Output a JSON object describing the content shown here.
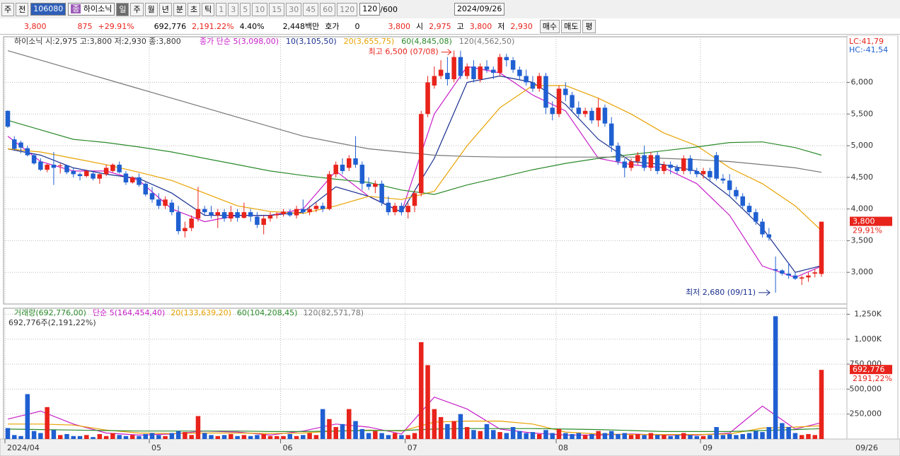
{
  "toolbar": {
    "row1": {
      "period_tab": "주",
      "all": "전",
      "code": "106080",
      "badge": "종",
      "name": "하이소닉",
      "periods": [
        "일",
        "주",
        "월",
        "년",
        "분",
        "초",
        "틱"
      ],
      "minutes": [
        "1",
        "3",
        "5",
        "10",
        "15",
        "30",
        "45",
        "60",
        "120"
      ],
      "count": "120",
      "total": "/600",
      "date": "2024/09/26"
    },
    "row2": {
      "price": "3,800",
      "change": "875",
      "rate": "+29.91%",
      "volume": "692,776",
      "volume_rate": "2,191.22%",
      "turnover": "4.40%",
      "amount": "2,448백만",
      "quote_label": "호가",
      "quote": "0",
      "ask": "3,800",
      "open_label": "시",
      "open": "2,975",
      "high_label": "고",
      "high": "3,800",
      "low_label": "저",
      "low": "2,930",
      "buy": "매수",
      "sell": "매도",
      "avg": "평"
    }
  },
  "chart_data": {
    "type": "candlestick",
    "title": "하이소닉 시:2,975 고:3,800 저:2,930 종:3,800",
    "colors": {
      "up": "#e8231b",
      "down": "#1f5fd1"
    },
    "ylim": [
      2500,
      6720
    ],
    "yticks": [
      {
        "value": 3000,
        "label": "3,000"
      },
      {
        "value": 3500,
        "label": "3,500"
      },
      {
        "value": 4000,
        "label": "4,000"
      },
      {
        "value": 4500,
        "label": "4,500"
      },
      {
        "value": 5000,
        "label": "5,000"
      },
      {
        "value": 5500,
        "label": "5,500"
      },
      {
        "value": 6000,
        "label": "6,000"
      }
    ],
    "volume_ylim": [
      0,
      1310000
    ],
    "volume_yticks": [
      {
        "value": 250000,
        "label": "250,000"
      },
      {
        "value": 500000,
        "label": "500,000"
      },
      {
        "value": 750000,
        "label": "750,000"
      },
      {
        "value": 1000000,
        "label": "1,000K"
      },
      {
        "value": 1250000,
        "label": "1,250K"
      }
    ],
    "high_annotation": "최고 6,500 (07/08)",
    "low_annotation": "최저 2,680 (09/11)",
    "lc": "LC:41,79",
    "hc": "HC:-41,54",
    "last_price_label": "3,800",
    "last_rate_label": "29,91%",
    "volume_title": "거래량(692,776,00)",
    "volume_subtitle": "692,776주(2,191,22%)",
    "last_volume_label": "692,776",
    "last_volume_rate_label": "2191,22%",
    "grid": true,
    "dates": [
      "2024/04",
      null,
      null,
      null,
      null,
      null,
      null,
      null,
      null,
      null,
      null,
      null,
      null,
      null,
      null,
      null,
      null,
      null,
      null,
      null,
      null,
      null,
      "05",
      null,
      null,
      null,
      null,
      null,
      null,
      null,
      null,
      null,
      null,
      null,
      null,
      null,
      null,
      null,
      null,
      null,
      null,
      null,
      "06",
      null,
      null,
      null,
      null,
      null,
      null,
      null,
      null,
      null,
      null,
      null,
      null,
      null,
      null,
      null,
      null,
      null,
      null,
      "07",
      null,
      null,
      null,
      null,
      null,
      null,
      null,
      null,
      null,
      null,
      null,
      null,
      null,
      null,
      null,
      null,
      null,
      null,
      null,
      null,
      null,
      null,
      "08",
      null,
      null,
      null,
      null,
      null,
      null,
      null,
      null,
      null,
      null,
      null,
      null,
      null,
      null,
      null,
      null,
      null,
      null,
      null,
      null,
      null,
      "09",
      null,
      null,
      null,
      null,
      null,
      null,
      null,
      null,
      null,
      null,
      null,
      null,
      null,
      null,
      null,
      null,
      null,
      "09/26"
    ],
    "candles": [
      [
        5550,
        5560,
        5280,
        5300,
        110000
      ],
      [
        5100,
        5150,
        4930,
        4950,
        40000
      ],
      [
        5050,
        5080,
        4880,
        4970,
        30000
      ],
      [
        4960,
        5000,
        4830,
        4850,
        450000
      ],
      [
        4850,
        4880,
        4700,
        4720,
        80000
      ],
      [
        4750,
        4800,
        4600,
        4620,
        60000
      ],
      [
        4620,
        4720,
        4580,
        4700,
        320000
      ],
      [
        4700,
        4900,
        4380,
        4650,
        90000
      ],
      [
        4680,
        4720,
        4560,
        4690,
        40000
      ],
      [
        4690,
        4700,
        4550,
        4580,
        50000
      ],
      [
        4600,
        4650,
        4500,
        4550,
        30000
      ],
      [
        4550,
        4580,
        4450,
        4520,
        30000
      ],
      [
        4520,
        4620,
        4500,
        4600,
        40000
      ],
      [
        4560,
        4600,
        4450,
        4480,
        20000
      ],
      [
        4480,
        4560,
        4400,
        4550,
        50000
      ],
      [
        4550,
        4700,
        4520,
        4650,
        30000
      ],
      [
        4600,
        4720,
        4580,
        4700,
        60000
      ],
      [
        4700,
        4750,
        4560,
        4580,
        40000
      ],
      [
        4560,
        4600,
        4380,
        4420,
        30000
      ],
      [
        4420,
        4520,
        4400,
        4500,
        40000
      ],
      [
        4500,
        4560,
        4350,
        4380,
        30000
      ],
      [
        4400,
        4420,
        4200,
        4230,
        50000
      ],
      [
        4250,
        4350,
        4100,
        4150,
        60000
      ],
      [
        4150,
        4250,
        4000,
        4050,
        40000
      ],
      [
        4050,
        4200,
        4000,
        4150,
        30000
      ],
      [
        4100,
        4150,
        3900,
        3950,
        60000
      ],
      [
        3950,
        4050,
        3600,
        3650,
        80000
      ],
      [
        3650,
        3800,
        3550,
        3700,
        70000
      ],
      [
        3700,
        3900,
        3650,
        3850,
        40000
      ],
      [
        3850,
        4350,
        3800,
        4000,
        230000
      ],
      [
        4000,
        4050,
        3900,
        3950,
        60000
      ],
      [
        3950,
        4050,
        3850,
        3900,
        40000
      ],
      [
        3900,
        4000,
        3700,
        3950,
        30000
      ],
      [
        3950,
        4000,
        3800,
        3850,
        40000
      ],
      [
        3850,
        4050,
        3800,
        3950,
        50000
      ],
      [
        3950,
        4000,
        3800,
        3860,
        30000
      ],
      [
        3860,
        4100,
        3850,
        3950,
        40000
      ],
      [
        3950,
        4000,
        3800,
        3880,
        30000
      ],
      [
        3880,
        3950,
        3700,
        3750,
        40000
      ],
      [
        3750,
        3900,
        3600,
        3850,
        50000
      ],
      [
        3850,
        3950,
        3800,
        3900,
        30000
      ],
      [
        3900,
        3950,
        3850,
        3920,
        30000
      ],
      [
        3920,
        4000,
        3880,
        3960,
        30000
      ],
      [
        3950,
        4000,
        3880,
        3900,
        50000
      ],
      [
        3900,
        4050,
        3850,
        4000,
        30000
      ],
      [
        4000,
        4150,
        3920,
        3950,
        40000
      ],
      [
        3950,
        4050,
        3900,
        4000,
        60000
      ],
      [
        4000,
        4100,
        3950,
        4050,
        40000
      ],
      [
        4050,
        4100,
        3950,
        4000,
        300000
      ],
      [
        4000,
        4600,
        3980,
        4550,
        200000
      ],
      [
        4550,
        4750,
        4500,
        4700,
        120000
      ],
      [
        4700,
        4800,
        4550,
        4600,
        150000
      ],
      [
        4650,
        4850,
        4600,
        4800,
        300000
      ],
      [
        4800,
        5150,
        4650,
        4700,
        180000
      ],
      [
        4700,
        4750,
        4300,
        4400,
        100000
      ],
      [
        4400,
        4500,
        4300,
        4350,
        60000
      ],
      [
        4350,
        4450,
        4250,
        4400,
        80000
      ],
      [
        4400,
        4450,
        4050,
        4100,
        60000
      ],
      [
        4100,
        4200,
        3900,
        3950,
        40000
      ],
      [
        3950,
        4100,
        3900,
        4050,
        60000
      ],
      [
        4050,
        4100,
        3900,
        3950,
        40000
      ],
      [
        3950,
        4100,
        3850,
        4050,
        40000
      ],
      [
        4050,
        4300,
        3950,
        4250,
        60000
      ],
      [
        4250,
        5550,
        4200,
        5500,
        970000
      ],
      [
        5500,
        6100,
        5450,
        6000,
        740000
      ],
      [
        5950,
        6250,
        5900,
        6100,
        300000
      ],
      [
        6100,
        6350,
        6050,
        6200,
        220000
      ],
      [
        6150,
        6400,
        5950,
        6050,
        150000
      ],
      [
        6050,
        6500,
        6000,
        6400,
        180000
      ],
      [
        6400,
        6500,
        6050,
        6100,
        250000
      ],
      [
        6100,
        6300,
        6050,
        6250,
        120000
      ],
      [
        6250,
        6350,
        6000,
        6050,
        90000
      ],
      [
        6050,
        6300,
        6000,
        6250,
        80000
      ],
      [
        6250,
        6350,
        6150,
        6200,
        150000
      ],
      [
        6200,
        6250,
        6050,
        6150,
        90000
      ],
      [
        6150,
        6450,
        6100,
        6400,
        70000
      ],
      [
        6400,
        6450,
        6250,
        6350,
        60000
      ],
      [
        6350,
        6400,
        6150,
        6200,
        120000
      ],
      [
        6200,
        6250,
        6050,
        6100,
        80000
      ],
      [
        6100,
        6200,
        5950,
        6000,
        60000
      ],
      [
        6000,
        6100,
        5850,
        5900,
        70000
      ],
      [
        5900,
        6150,
        5850,
        6100,
        50000
      ],
      [
        6100,
        6150,
        5500,
        5600,
        90000
      ],
      [
        5600,
        5700,
        5400,
        5500,
        60000
      ],
      [
        5500,
        5950,
        5450,
        5900,
        100000
      ],
      [
        5900,
        6000,
        5700,
        5800,
        60000
      ],
      [
        5800,
        5850,
        5550,
        5600,
        50000
      ],
      [
        5600,
        5700,
        5450,
        5500,
        60000
      ],
      [
        5500,
        5600,
        5450,
        5550,
        40000
      ],
      [
        5550,
        5600,
        5350,
        5400,
        50000
      ],
      [
        5400,
        5750,
        5300,
        5600,
        80000
      ],
      [
        5600,
        5650,
        5300,
        5350,
        60000
      ],
      [
        5350,
        5450,
        4900,
        5000,
        80000
      ],
      [
        5000,
        5050,
        4700,
        4750,
        50000
      ],
      [
        4750,
        4800,
        4500,
        4650,
        60000
      ],
      [
        4650,
        4800,
        4600,
        4750,
        40000
      ],
      [
        4750,
        4900,
        4700,
        4850,
        50000
      ],
      [
        4850,
        5000,
        4600,
        4650,
        40000
      ],
      [
        4650,
        4900,
        4600,
        4850,
        60000
      ],
      [
        4850,
        4900,
        4550,
        4600,
        40000
      ],
      [
        4600,
        4750,
        4550,
        4700,
        40000
      ],
      [
        4700,
        4750,
        4550,
        4650,
        30000
      ],
      [
        4650,
        4700,
        4550,
        4600,
        40000
      ],
      [
        4600,
        4850,
        4550,
        4800,
        60000
      ],
      [
        4800,
        4850,
        4550,
        4600,
        40000
      ],
      [
        4600,
        4650,
        4500,
        4550,
        30000
      ],
      [
        4550,
        4650,
        4480,
        4600,
        30000
      ],
      [
        4600,
        4650,
        4450,
        4500,
        40000
      ],
      [
        4850,
        4900,
        4450,
        4480,
        120000
      ],
      [
        4480,
        4550,
        4400,
        4450,
        40000
      ],
      [
        4450,
        4550,
        4200,
        4300,
        50000
      ],
      [
        4300,
        4350,
        4150,
        4200,
        40000
      ],
      [
        4200,
        4250,
        4000,
        4050,
        50000
      ],
      [
        4050,
        4100,
        3900,
        3950,
        60000
      ],
      [
        3950,
        4000,
        3750,
        3800,
        80000
      ],
      [
        3800,
        3850,
        3550,
        3600,
        70000
      ],
      [
        3600,
        3700,
        3500,
        3550,
        120000
      ],
      [
        3050,
        3250,
        2680,
        3030,
        1230000
      ],
      [
        3030,
        3050,
        2950,
        2980,
        160000
      ],
      [
        2980,
        3150,
        2900,
        2950,
        120000
      ],
      [
        2950,
        3000,
        2880,
        2900,
        60000
      ],
      [
        2900,
        2950,
        2800,
        2920,
        40000
      ],
      [
        2920,
        3000,
        2850,
        2950,
        50000
      ],
      [
        2980,
        3050,
        2920,
        3000,
        40000
      ],
      [
        2975,
        3800,
        2930,
        3800,
        692776
      ]
    ],
    "ma_x": [
      0,
      5,
      10,
      15,
      20,
      25,
      30,
      35,
      40,
      45,
      50,
      55,
      60,
      65,
      70,
      75,
      80,
      85,
      90,
      95,
      100,
      105,
      110,
      115,
      120,
      124
    ],
    "ma_lines": [
      {
        "name": "종가 단순 5(3,098,00)",
        "color": "#c81fc8",
        "values": [
          5150,
          4750,
          4600,
          4600,
          4450,
          4000,
          3800,
          3900,
          3900,
          4000,
          4600,
          4200,
          3950,
          5500,
          6250,
          6150,
          5800,
          5550,
          4800,
          4700,
          4650,
          4400,
          3900,
          3100,
          2920,
          3098
        ]
      },
      {
        "name": "10(3,105,50)",
        "color": "#1a2f8f",
        "values": [
          4950,
          4850,
          4650,
          4550,
          4480,
          4250,
          3900,
          3900,
          3900,
          3950,
          4350,
          4200,
          3950,
          4800,
          6000,
          6100,
          6000,
          5650,
          5100,
          4750,
          4700,
          4600,
          4200,
          3700,
          3000,
          3105
        ]
      },
      {
        "name": "20(3,655,75)",
        "color": "#e8a200",
        "values": [
          4950,
          4900,
          4800,
          4700,
          4580,
          4450,
          4250,
          4050,
          3960,
          3930,
          4050,
          4200,
          4150,
          4280,
          5000,
          5600,
          5950,
          5950,
          5750,
          5500,
          5200,
          5000,
          4650,
          4400,
          4050,
          3660
        ]
      },
      {
        "name": "60(4,845,08)",
        "color": "#2a8a2a",
        "values": [
          5400,
          5250,
          5100,
          5050,
          4980,
          4900,
          4800,
          4700,
          4600,
          4530,
          4470,
          4420,
          4300,
          4230,
          4380,
          4500,
          4620,
          4720,
          4800,
          4860,
          4920,
          4980,
          5050,
          5060,
          4970,
          4850
        ]
      },
      {
        "name": "120(4,562,50)",
        "color": "#777777",
        "values": [
          6500,
          6350,
          6200,
          6050,
          5900,
          5750,
          5600,
          5450,
          5300,
          5150,
          5050,
          4950,
          4900,
          4850,
          4830,
          4820,
          4820,
          4820,
          4820,
          4820,
          4800,
          4780,
          4750,
          4700,
          4650,
          4580
        ]
      }
    ],
    "volume_ma_lines": [
      {
        "name": "단순 5(164,454,40)",
        "color": "#c81fc8",
        "values": [
          200000,
          280000,
          150000,
          60000,
          40000,
          50000,
          80000,
          70000,
          40000,
          80000,
          150000,
          120000,
          50000,
          420000,
          300000,
          100000,
          60000,
          40000,
          40000,
          50000,
          40000,
          40000,
          60000,
          330000,
          100000,
          164454
        ]
      },
      {
        "name": "20(133,639,20)",
        "color": "#e8a200",
        "values": [
          150000,
          150000,
          140000,
          90000,
          60000,
          55000,
          60000,
          60000,
          55000,
          60000,
          80000,
          90000,
          80000,
          170000,
          180000,
          180000,
          150000,
          70000,
          50000,
          45000,
          45000,
          45000,
          50000,
          110000,
          120000,
          133639
        ]
      },
      {
        "name": "60(104,208,45)",
        "color": "#2a8a2a",
        "values": [
          100000,
          95000,
          90000,
          85000,
          80000,
          80000,
          80000,
          80000,
          75000,
          75000,
          80000,
          85000,
          85000,
          100000,
          105000,
          105000,
          105000,
          100000,
          95000,
          85000,
          75000,
          75000,
          75000,
          85000,
          95000,
          104208
        ]
      }
    ],
    "volume_extra_legend": "120(82,571,78)",
    "volume_extra_color": "#777777"
  }
}
